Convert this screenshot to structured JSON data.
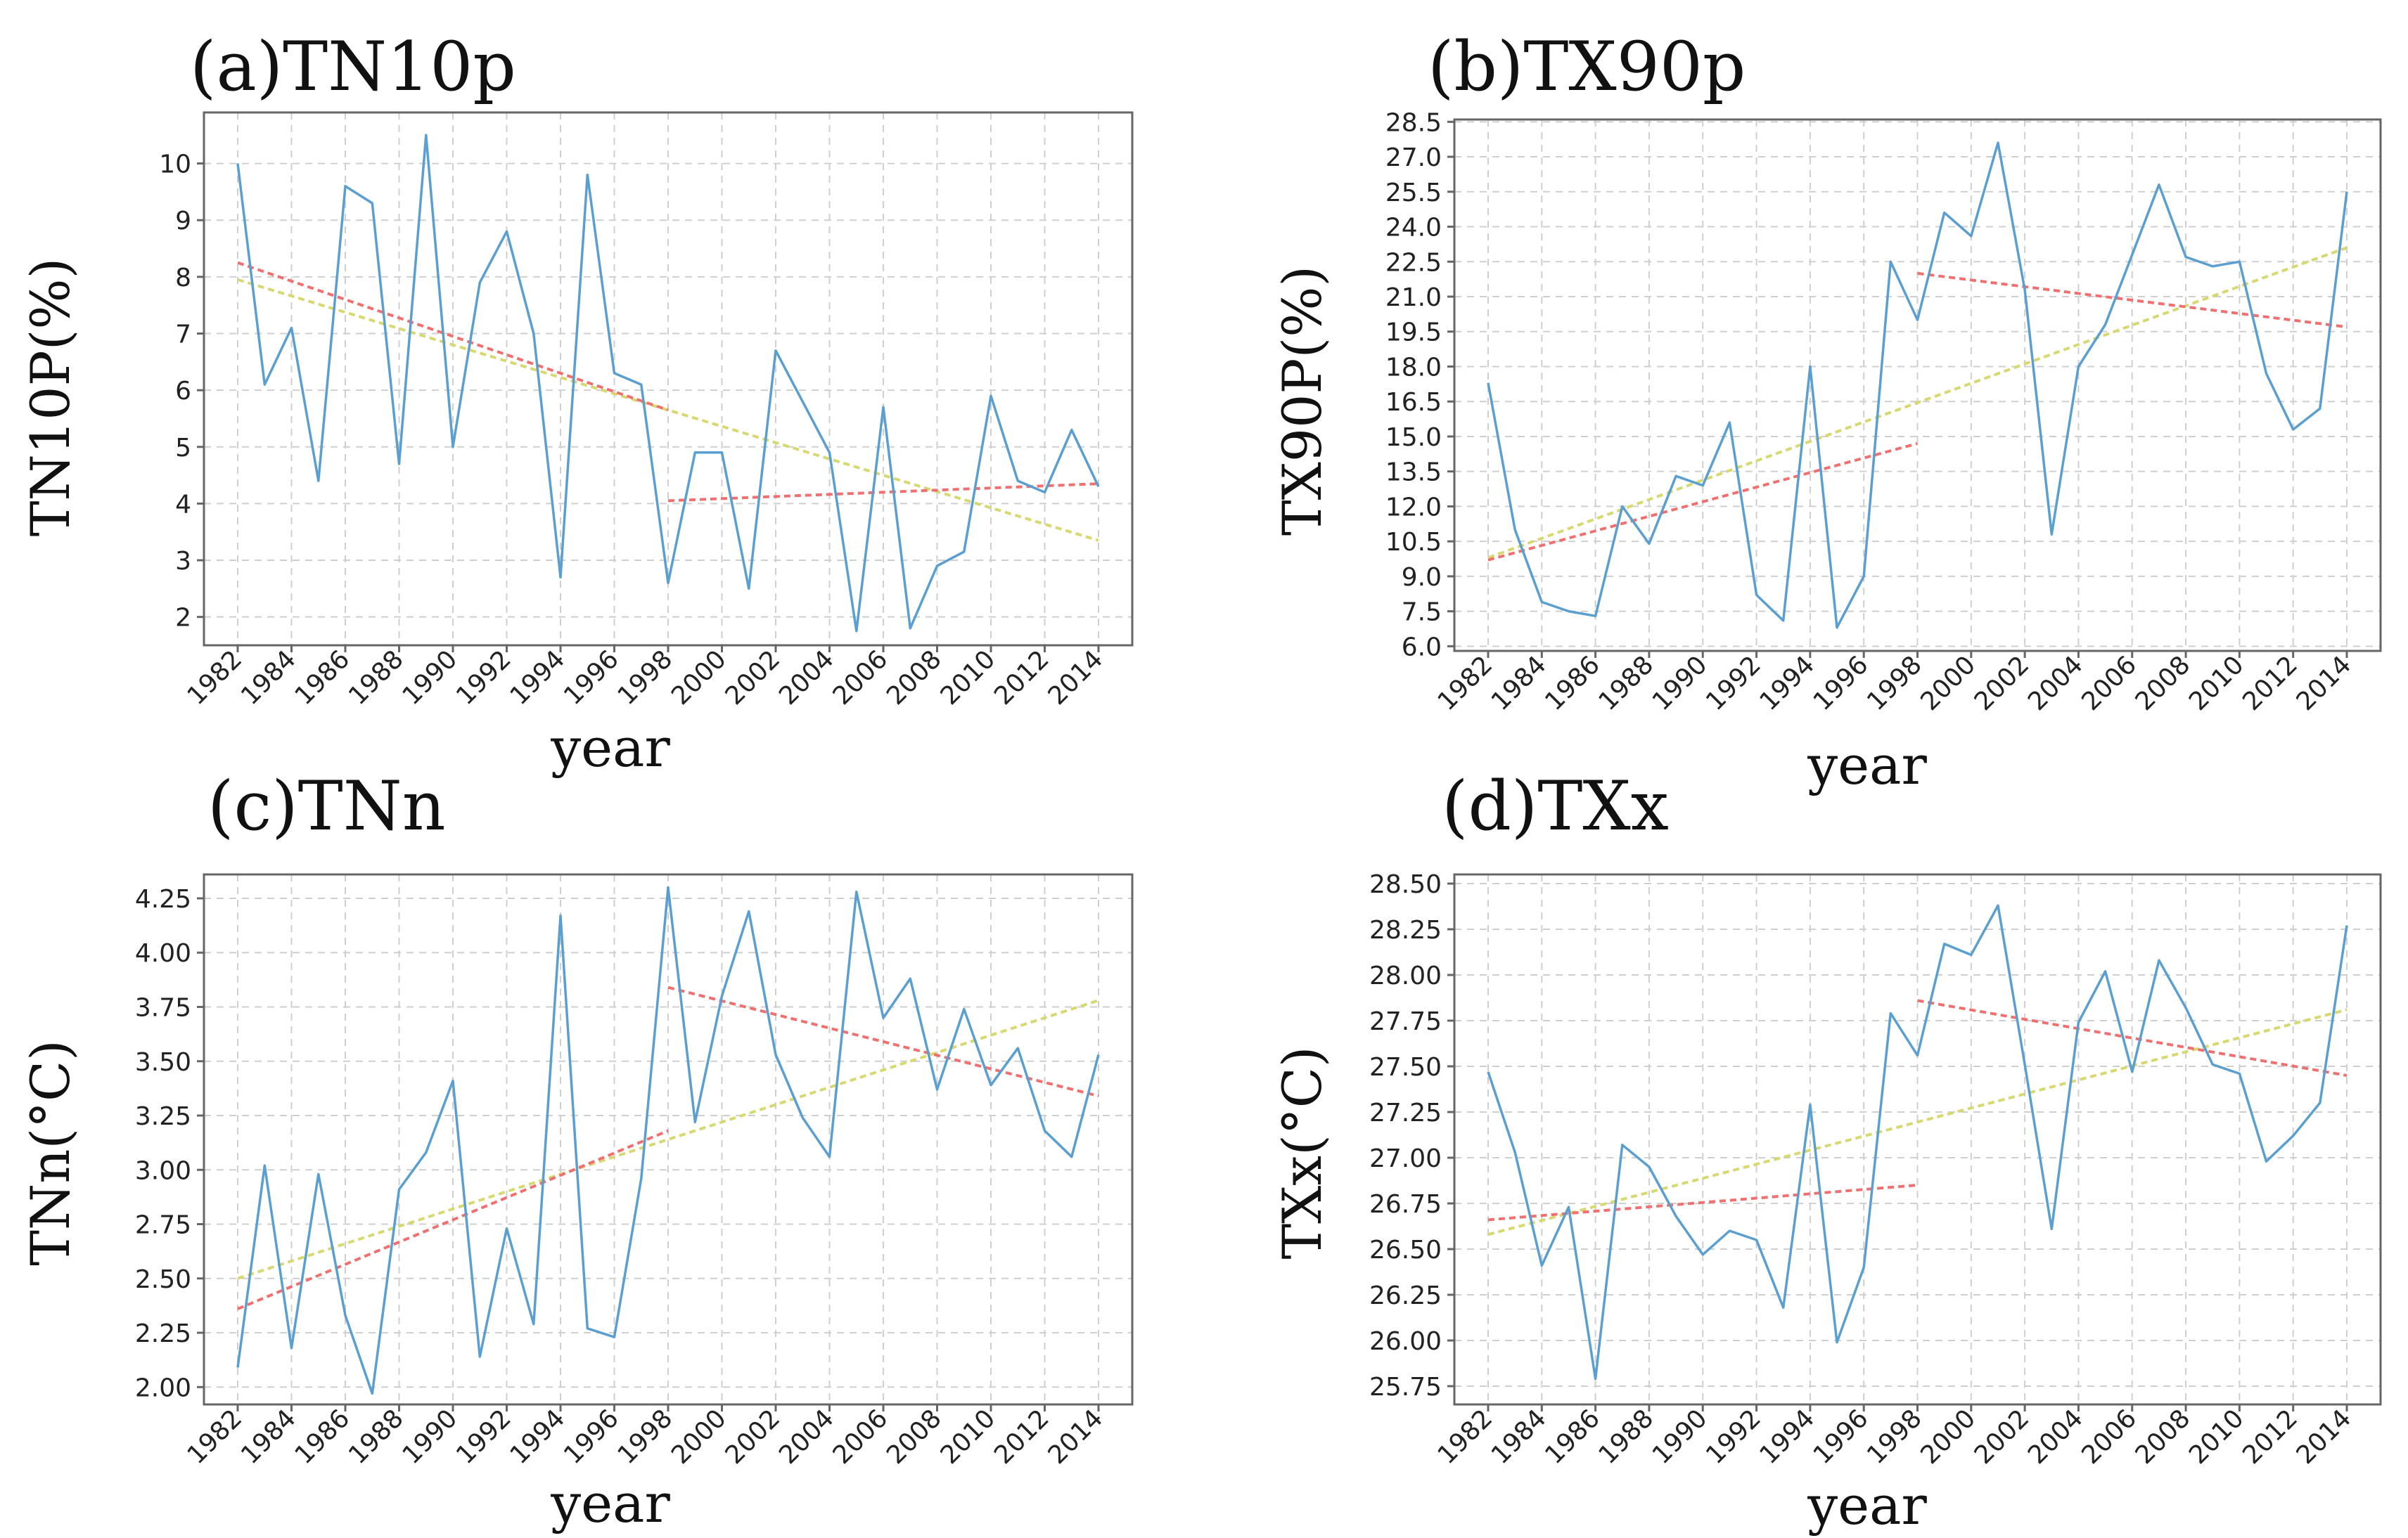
{
  "colors": {
    "series": "#5a9fd0",
    "full_trend": "#d8d870",
    "segment_trend": "#f07070",
    "frame": "#666666",
    "grid": "#cfcfcf"
  },
  "chart_data": [
    {
      "id": "a",
      "type": "line",
      "title": "(a)TN10p",
      "xlabel": "year",
      "ylabel": "TN10P(%)",
      "x": [
        1982,
        1983,
        1984,
        1985,
        1986,
        1987,
        1988,
        1989,
        1990,
        1991,
        1992,
        1993,
        1994,
        1995,
        1996,
        1997,
        1998,
        1999,
        2000,
        2001,
        2002,
        2003,
        2004,
        2005,
        2006,
        2007,
        2008,
        2009,
        2010,
        2011,
        2012,
        2013,
        2014
      ],
      "x_ticks": [
        "1982",
        "1984",
        "1986",
        "1988",
        "1990",
        "1992",
        "1994",
        "1996",
        "1998",
        "2000",
        "2002",
        "2004",
        "2006",
        "2008",
        "2010",
        "2012",
        "2014"
      ],
      "y_ticks": [
        "2",
        "3",
        "4",
        "5",
        "6",
        "7",
        "8",
        "9",
        "10"
      ],
      "ylim": [
        1.5,
        10.9
      ],
      "grid": true,
      "series": [
        {
          "name": "TN10p",
          "values": [
            10.0,
            6.1,
            7.1,
            4.4,
            9.6,
            9.3,
            4.7,
            10.5,
            5.0,
            7.9,
            8.8,
            7.0,
            2.7,
            9.8,
            6.3,
            6.1,
            2.6,
            4.9,
            4.9,
            2.5,
            6.7,
            5.8,
            4.9,
            1.75,
            5.7,
            1.8,
            2.9,
            3.15,
            5.9,
            4.4,
            4.2,
            5.3,
            4.3
          ]
        }
      ],
      "trend_lines": [
        {
          "name": "trend-1982-2014",
          "x": [
            1982,
            2014
          ],
          "y": [
            7.95,
            3.35
          ],
          "kind": "full"
        },
        {
          "name": "trend-1982-1998",
          "x": [
            1982,
            1998
          ],
          "y": [
            8.25,
            5.65
          ],
          "kind": "segment"
        },
        {
          "name": "trend-1998-2014",
          "x": [
            1998,
            2014
          ],
          "y": [
            4.05,
            4.35
          ],
          "kind": "segment"
        }
      ]
    },
    {
      "id": "b",
      "type": "line",
      "title": "(b)TX90p",
      "xlabel": "year",
      "ylabel": "TX90P(%)",
      "x": [
        1982,
        1983,
        1984,
        1985,
        1986,
        1987,
        1988,
        1989,
        1990,
        1991,
        1992,
        1993,
        1994,
        1995,
        1996,
        1997,
        1998,
        1999,
        2000,
        2001,
        2002,
        2003,
        2004,
        2005,
        2006,
        2007,
        2008,
        2009,
        2010,
        2011,
        2012,
        2013,
        2014
      ],
      "x_ticks": [
        "1982",
        "1984",
        "1986",
        "1988",
        "1990",
        "1992",
        "1994",
        "1996",
        "1998",
        "2000",
        "2002",
        "2004",
        "2006",
        "2008",
        "2010",
        "2012",
        "2014"
      ],
      "y_ticks": [
        "6.0",
        "7.5",
        "9.0",
        "10.5",
        "12.0",
        "13.5",
        "15.0",
        "16.5",
        "18.0",
        "19.5",
        "21.0",
        "22.5",
        "24.0",
        "25.5",
        "27.0",
        "28.5"
      ],
      "ylim": [
        5.8,
        28.6
      ],
      "grid": true,
      "series": [
        {
          "name": "TX90p",
          "values": [
            17.3,
            11.0,
            7.9,
            7.5,
            7.3,
            12.0,
            10.4,
            13.3,
            12.9,
            15.6,
            8.2,
            7.1,
            18.0,
            6.8,
            9.0,
            22.5,
            20.0,
            24.6,
            23.6,
            27.6,
            21.3,
            10.8,
            18.0,
            19.8,
            22.8,
            25.8,
            22.7,
            22.3,
            22.5,
            17.7,
            15.3,
            16.2,
            25.5
          ]
        }
      ],
      "trend_lines": [
        {
          "name": "trend-1982-2014",
          "x": [
            1982,
            2014
          ],
          "y": [
            9.8,
            23.1
          ],
          "kind": "full"
        },
        {
          "name": "trend-1982-1998",
          "x": [
            1982,
            1998
          ],
          "y": [
            9.7,
            14.7
          ],
          "kind": "segment"
        },
        {
          "name": "trend-1998-2014",
          "x": [
            1998,
            2014
          ],
          "y": [
            22.0,
            19.7
          ],
          "kind": "segment"
        }
      ]
    },
    {
      "id": "c",
      "type": "line",
      "title": "(c)TNn",
      "xlabel": "year",
      "ylabel": "TNn(°C)",
      "x": [
        1982,
        1983,
        1984,
        1985,
        1986,
        1987,
        1988,
        1989,
        1990,
        1991,
        1992,
        1993,
        1994,
        1995,
        1996,
        1997,
        1998,
        1999,
        2000,
        2001,
        2002,
        2003,
        2004,
        2005,
        2006,
        2007,
        2008,
        2009,
        2010,
        2011,
        2012,
        2013,
        2014
      ],
      "x_ticks": [
        "1982",
        "1984",
        "1986",
        "1988",
        "1990",
        "1992",
        "1994",
        "1996",
        "1998",
        "2000",
        "2002",
        "2004",
        "2006",
        "2008",
        "2010",
        "2012",
        "2014"
      ],
      "y_ticks": [
        "2.00",
        "2.25",
        "2.50",
        "2.75",
        "3.00",
        "3.25",
        "3.50",
        "3.75",
        "4.00",
        "4.25"
      ],
      "ylim": [
        1.92,
        4.36
      ],
      "grid": true,
      "series": [
        {
          "name": "TNn",
          "values": [
            2.09,
            3.02,
            2.18,
            2.98,
            2.33,
            1.97,
            2.91,
            3.08,
            3.41,
            2.14,
            2.73,
            2.29,
            4.17,
            2.27,
            2.23,
            2.96,
            4.3,
            3.22,
            3.8,
            4.19,
            3.53,
            3.24,
            3.06,
            4.28,
            3.7,
            3.88,
            3.37,
            3.74,
            3.39,
            3.56,
            3.18,
            3.06,
            3.53
          ]
        }
      ],
      "trend_lines": [
        {
          "name": "trend-1982-2014",
          "x": [
            1982,
            2014
          ],
          "y": [
            2.5,
            3.78
          ],
          "kind": "full"
        },
        {
          "name": "trend-1982-1998",
          "x": [
            1982,
            1998
          ],
          "y": [
            2.36,
            3.18
          ],
          "kind": "segment"
        },
        {
          "name": "trend-1998-2014",
          "x": [
            1998,
            2014
          ],
          "y": [
            3.84,
            3.34
          ],
          "kind": "segment"
        }
      ]
    },
    {
      "id": "d",
      "type": "line",
      "title": "(d)TXx",
      "xlabel": "year",
      "ylabel": "TXx(°C)",
      "x": [
        1982,
        1983,
        1984,
        1985,
        1986,
        1987,
        1988,
        1989,
        1990,
        1991,
        1992,
        1993,
        1994,
        1995,
        1996,
        1997,
        1998,
        1999,
        2000,
        2001,
        2002,
        2003,
        2004,
        2005,
        2006,
        2007,
        2008,
        2009,
        2010,
        2011,
        2012,
        2013,
        2014
      ],
      "x_ticks": [
        "1982",
        "1984",
        "1986",
        "1988",
        "1990",
        "1992",
        "1994",
        "1996",
        "1998",
        "2000",
        "2002",
        "2004",
        "2006",
        "2008",
        "2010",
        "2012",
        "2014"
      ],
      "y_ticks": [
        "25.75",
        "26.00",
        "26.25",
        "26.50",
        "26.75",
        "27.00",
        "27.25",
        "27.50",
        "27.75",
        "28.00",
        "28.25",
        "28.50"
      ],
      "ylim": [
        25.65,
        28.55
      ],
      "grid": true,
      "series": [
        {
          "name": "TXx",
          "values": [
            27.47,
            27.03,
            26.41,
            26.73,
            25.79,
            27.07,
            26.95,
            26.68,
            26.47,
            26.6,
            26.55,
            26.18,
            27.29,
            25.99,
            26.4,
            27.79,
            27.56,
            28.17,
            28.11,
            28.38,
            27.51,
            26.61,
            27.74,
            28.02,
            27.47,
            28.08,
            27.82,
            27.51,
            27.46,
            26.98,
            27.12,
            27.3,
            28.27
          ]
        }
      ],
      "trend_lines": [
        {
          "name": "trend-1982-2014",
          "x": [
            1982,
            2014
          ],
          "y": [
            26.58,
            27.81
          ],
          "kind": "full"
        },
        {
          "name": "trend-1982-1998",
          "x": [
            1982,
            1998
          ],
          "y": [
            26.66,
            26.85
          ],
          "kind": "segment"
        },
        {
          "name": "trend-1998-2014",
          "x": [
            1998,
            2014
          ],
          "y": [
            27.86,
            27.45
          ],
          "kind": "segment"
        }
      ]
    }
  ]
}
